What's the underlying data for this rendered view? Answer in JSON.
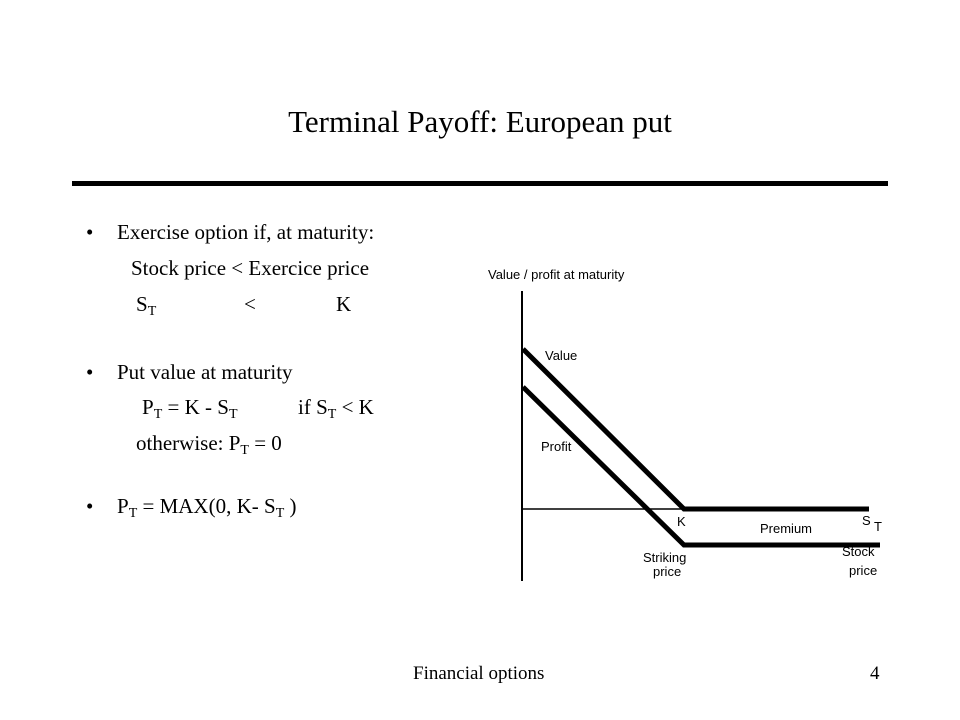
{
  "slide": {
    "title": "Terminal Payoff: European put",
    "bullet_char": "•",
    "bullet1": "Exercise option if, at maturity:",
    "line_stock_price": "Stock price < Exercice price",
    "line_st": "S",
    "line_st_sub": "T",
    "line_lt": "<",
    "line_k": "K",
    "bullet2": "Put value at maturity",
    "pt_p": "P",
    "pt_sub": "T",
    "pt_eq": "= K -  S",
    "pt_eq_sub": "T",
    "pt_if": "if S",
    "pt_if_sub": "T",
    "pt_if_end": "< K",
    "otherwise_text": "otherwise: P",
    "otherwise_sub": "T",
    "otherwise_end": "= 0",
    "max_p": "P",
    "max_sub": "T",
    "max_mid": "= MAX(0, K- S",
    "max_sub2": "T",
    "max_end": ")"
  },
  "diagram": {
    "y_axis_label": "Value / profit at maturity",
    "value_label": "Value",
    "profit_label": "Profit",
    "k_label": "K",
    "premium_label": "Premium",
    "st_label": "S",
    "st_sub": "T",
    "striking_label_1": "Striking",
    "striking_label_2": "price",
    "stock_label_1": "Stock",
    "stock_label_2": "price"
  },
  "footer": {
    "left": "Financial options",
    "page": "4"
  }
}
